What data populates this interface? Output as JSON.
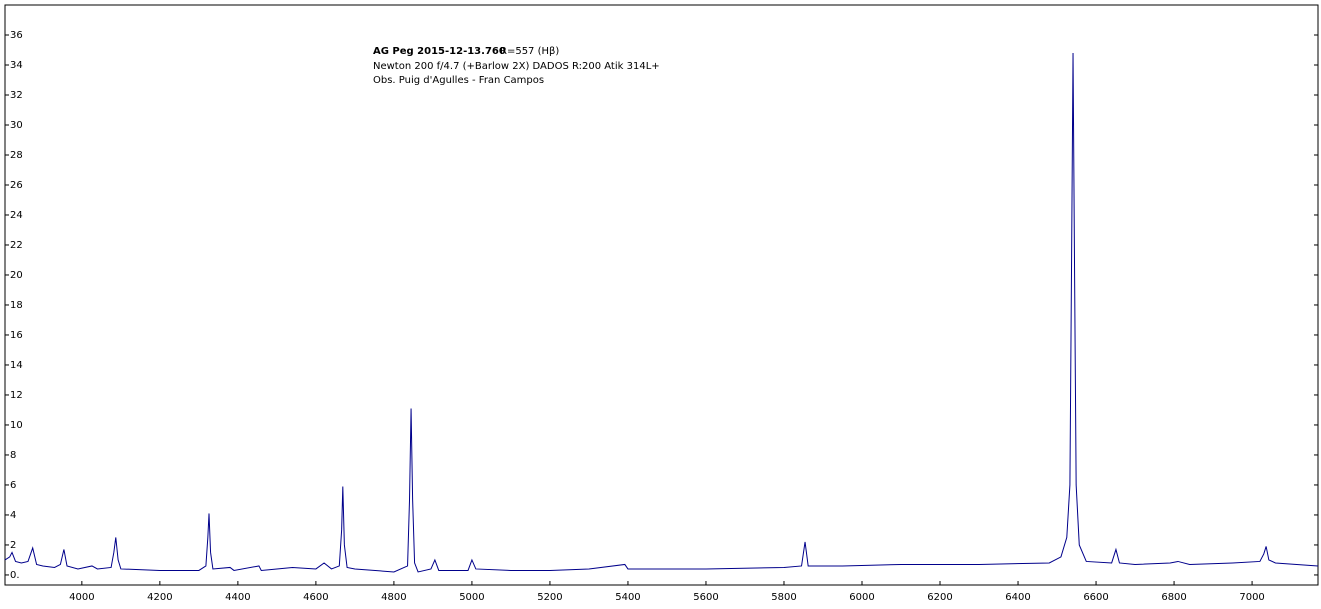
{
  "chart_data": {
    "type": "line",
    "annotations": [
      "AG Peg 2015-12-13.760",
      "R=557 (Hβ)",
      "Newton 200 f/4.7 (+Barlow 2X) DADOS R:200 Atik 314L+",
      "Obs. Puig d'Agulles - Fran Campos"
    ],
    "x": [
      3803,
      3815,
      3821,
      3830,
      3845,
      3862,
      3874,
      3884,
      3900,
      3930,
      3945,
      3954,
      3962,
      3990,
      4026,
      4040,
      4075,
      4082,
      4087,
      4093,
      4100,
      4200,
      4300,
      4318,
      4323,
      4326,
      4330,
      4336,
      4380,
      4390,
      4454,
      4460,
      4500,
      4540,
      4600,
      4621,
      4640,
      4660,
      4666,
      4669,
      4673,
      4680,
      4700,
      4800,
      4835,
      4840,
      4844,
      4848,
      4853,
      4862,
      4895,
      4905,
      4915,
      4990,
      5000,
      5010,
      5100,
      5200,
      5300,
      5392,
      5400,
      5600,
      5800,
      5845,
      5854,
      5862,
      5950,
      6100,
      6300,
      6480,
      6510,
      6525,
      6533,
      6537,
      6541,
      6545,
      6549,
      6557,
      6575,
      6640,
      6651,
      6660,
      6700,
      6790,
      6810,
      6840,
      6950,
      7020,
      7030,
      7036,
      7043,
      7060,
      7169
    ],
    "series": [
      {
        "color": "#00008b",
        "values": [
          1.0,
          1.2,
          1.5,
          0.9,
          0.8,
          0.9,
          1.8,
          0.7,
          0.6,
          0.5,
          0.7,
          1.7,
          0.6,
          0.4,
          0.6,
          0.4,
          0.5,
          1.5,
          2.5,
          1.0,
          0.4,
          0.3,
          0.3,
          0.6,
          2.5,
          4.1,
          1.5,
          0.4,
          0.5,
          0.3,
          0.6,
          0.3,
          0.4,
          0.5,
          0.4,
          0.8,
          0.4,
          0.6,
          3.0,
          5.9,
          2.0,
          0.5,
          0.4,
          0.2,
          0.6,
          5.0,
          11.1,
          5.0,
          0.8,
          0.2,
          0.4,
          1.0,
          0.3,
          0.3,
          1.0,
          0.4,
          0.3,
          0.3,
          0.4,
          0.7,
          0.4,
          0.4,
          0.5,
          0.6,
          2.2,
          0.6,
          0.6,
          0.7,
          0.7,
          0.8,
          1.2,
          2.5,
          6,
          20,
          34.8,
          20,
          6,
          2.0,
          0.9,
          0.8,
          1.7,
          0.8,
          0.7,
          0.8,
          0.9,
          0.7,
          0.8,
          0.9,
          1.4,
          1.9,
          1.0,
          0.8,
          0.6
        ]
      }
    ],
    "xlim": [
      3803,
      7169
    ],
    "ylim": [
      -0.67,
      38
    ],
    "xticks": [
      4000,
      4200,
      4400,
      4600,
      4800,
      5000,
      5200,
      5400,
      5600,
      5800,
      6000,
      6200,
      6400,
      6600,
      6800,
      7000
    ],
    "yticks": [
      {
        "value": 0,
        "label": "0."
      },
      2,
      4,
      6,
      8,
      10,
      12,
      14,
      16,
      18,
      20,
      22,
      24,
      26,
      28,
      30,
      32,
      34,
      36
    ]
  }
}
